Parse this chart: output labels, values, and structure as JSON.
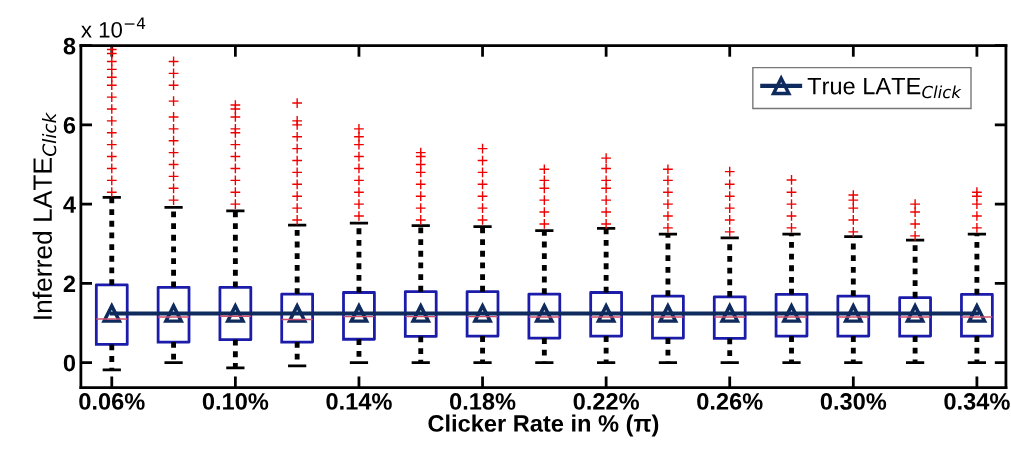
{
  "chart_data": {
    "type": "box",
    "categories": [
      "0.06%",
      null,
      "0.10%",
      null,
      "0.14%",
      null,
      "0.18%",
      null,
      "0.22%",
      null,
      "0.26%",
      null,
      "0.30%",
      null,
      "0.34%"
    ],
    "xlabel": "Clicker Rate in % (π)",
    "ylabel": "Inferred LATE$_{Click}$",
    "annotations": [
      "x 10$^{−4}$"
    ],
    "ylim": [
      -0.63,
      8
    ],
    "yticks": [
      0,
      2,
      4,
      6,
      8
    ],
    "grid": false,
    "legend": "top right",
    "series": [
      {
        "color": "#1c1caa",
        "boxes": [
          {
            "low": -0.18,
            "q1": 0.46,
            "median": 1.1,
            "q3": 1.96,
            "high": 4.17,
            "outliers": [
              4.3,
              4.6,
              4.9,
              5.2,
              5.5,
              5.8,
              6.1,
              6.4,
              6.7,
              7.0,
              7.2,
              7.4,
              7.6,
              7.8,
              7.9
            ]
          },
          {
            "low": 0,
            "q1": 0.52,
            "median": 1.15,
            "q3": 1.9,
            "high": 3.92,
            "outliers": [
              4.1,
              4.4,
              4.7,
              5.0,
              5.3,
              5.6,
              5.9,
              6.2,
              6.6,
              7.0,
              7.3,
              7.6
            ]
          },
          {
            "low": -0.13,
            "q1": 0.58,
            "median": 1.17,
            "q3": 1.9,
            "high": 3.83,
            "outliers": [
              4.0,
              4.3,
              4.6,
              4.9,
              5.2,
              5.5,
              5.8,
              5.9,
              6.2,
              6.4,
              6.5
            ]
          },
          {
            "low": -0.08,
            "q1": 0.52,
            "median": 1.09,
            "q3": 1.73,
            "high": 3.47,
            "outliers": [
              3.6,
              3.9,
              4.2,
              4.5,
              4.8,
              5.1,
              5.4,
              5.7,
              6.0,
              6.1,
              6.55
            ]
          },
          {
            "low": 0,
            "q1": 0.59,
            "median": 1.16,
            "q3": 1.77,
            "high": 3.52,
            "outliers": [
              3.7,
              4.0,
              4.3,
              4.6,
              4.9,
              5.2,
              5.5,
              5.7,
              5.9
            ]
          },
          {
            "low": 0,
            "q1": 0.66,
            "median": 1.16,
            "q3": 1.79,
            "high": 3.46,
            "outliers": [
              3.6,
              3.9,
              4.2,
              4.5,
              4.8,
              5.0,
              5.2,
              5.3
            ]
          },
          {
            "low": 0,
            "q1": 0.67,
            "median": 1.16,
            "q3": 1.79,
            "high": 3.43,
            "outliers": [
              3.6,
              3.9,
              4.2,
              4.5,
              4.8,
              5.1,
              5.4
            ]
          },
          {
            "low": 0,
            "q1": 0.62,
            "median": 1.15,
            "q3": 1.73,
            "high": 3.33,
            "outliers": [
              3.5,
              3.8,
              4.1,
              4.4,
              4.6,
              4.88
            ]
          },
          {
            "low": 0,
            "q1": 0.67,
            "median": 1.15,
            "q3": 1.77,
            "high": 3.39,
            "outliers": [
              3.5,
              3.8,
              4.1,
              4.4,
              4.6,
              4.9,
              5.16
            ]
          },
          {
            "low": 0,
            "q1": 0.62,
            "median": 1.15,
            "q3": 1.68,
            "high": 3.24,
            "outliers": [
              3.4,
              3.7,
              4.0,
              4.3,
              4.6,
              4.88
            ]
          },
          {
            "low": 0,
            "q1": 0.61,
            "median": 1.15,
            "q3": 1.66,
            "high": 3.15,
            "outliers": [
              3.3,
              3.6,
              3.9,
              4.2,
              4.5,
              4.82
            ]
          },
          {
            "low": 0,
            "q1": 0.67,
            "median": 1.15,
            "q3": 1.72,
            "high": 3.24,
            "outliers": [
              3.4,
              3.7,
              4.0,
              4.3,
              4.61
            ]
          },
          {
            "low": 0,
            "q1": 0.67,
            "median": 1.15,
            "q3": 1.68,
            "high": 3.18,
            "outliers": [
              3.3,
              3.6,
              3.9,
              4.1,
              4.23
            ]
          },
          {
            "low": 0,
            "q1": 0.67,
            "median": 1.15,
            "q3": 1.64,
            "high": 3.09,
            "outliers": [
              3.2,
              3.5,
              3.8,
              4.0
            ]
          },
          {
            "low": 0,
            "q1": 0.67,
            "median": 1.15,
            "q3": 1.72,
            "high": 3.24,
            "outliers": [
              3.4,
              3.7,
              4.0,
              4.2,
              4.3
            ]
          }
        ]
      },
      {
        "type": "line",
        "name": "True LATE$_{Click}$",
        "color": "#0f2a5c",
        "marker": "triangle",
        "values": [
          1.24,
          1.24,
          1.24,
          1.24,
          1.24,
          1.24,
          1.24,
          1.24,
          1.24,
          1.24,
          1.24,
          1.24,
          1.24,
          1.24,
          1.24
        ]
      }
    ]
  }
}
